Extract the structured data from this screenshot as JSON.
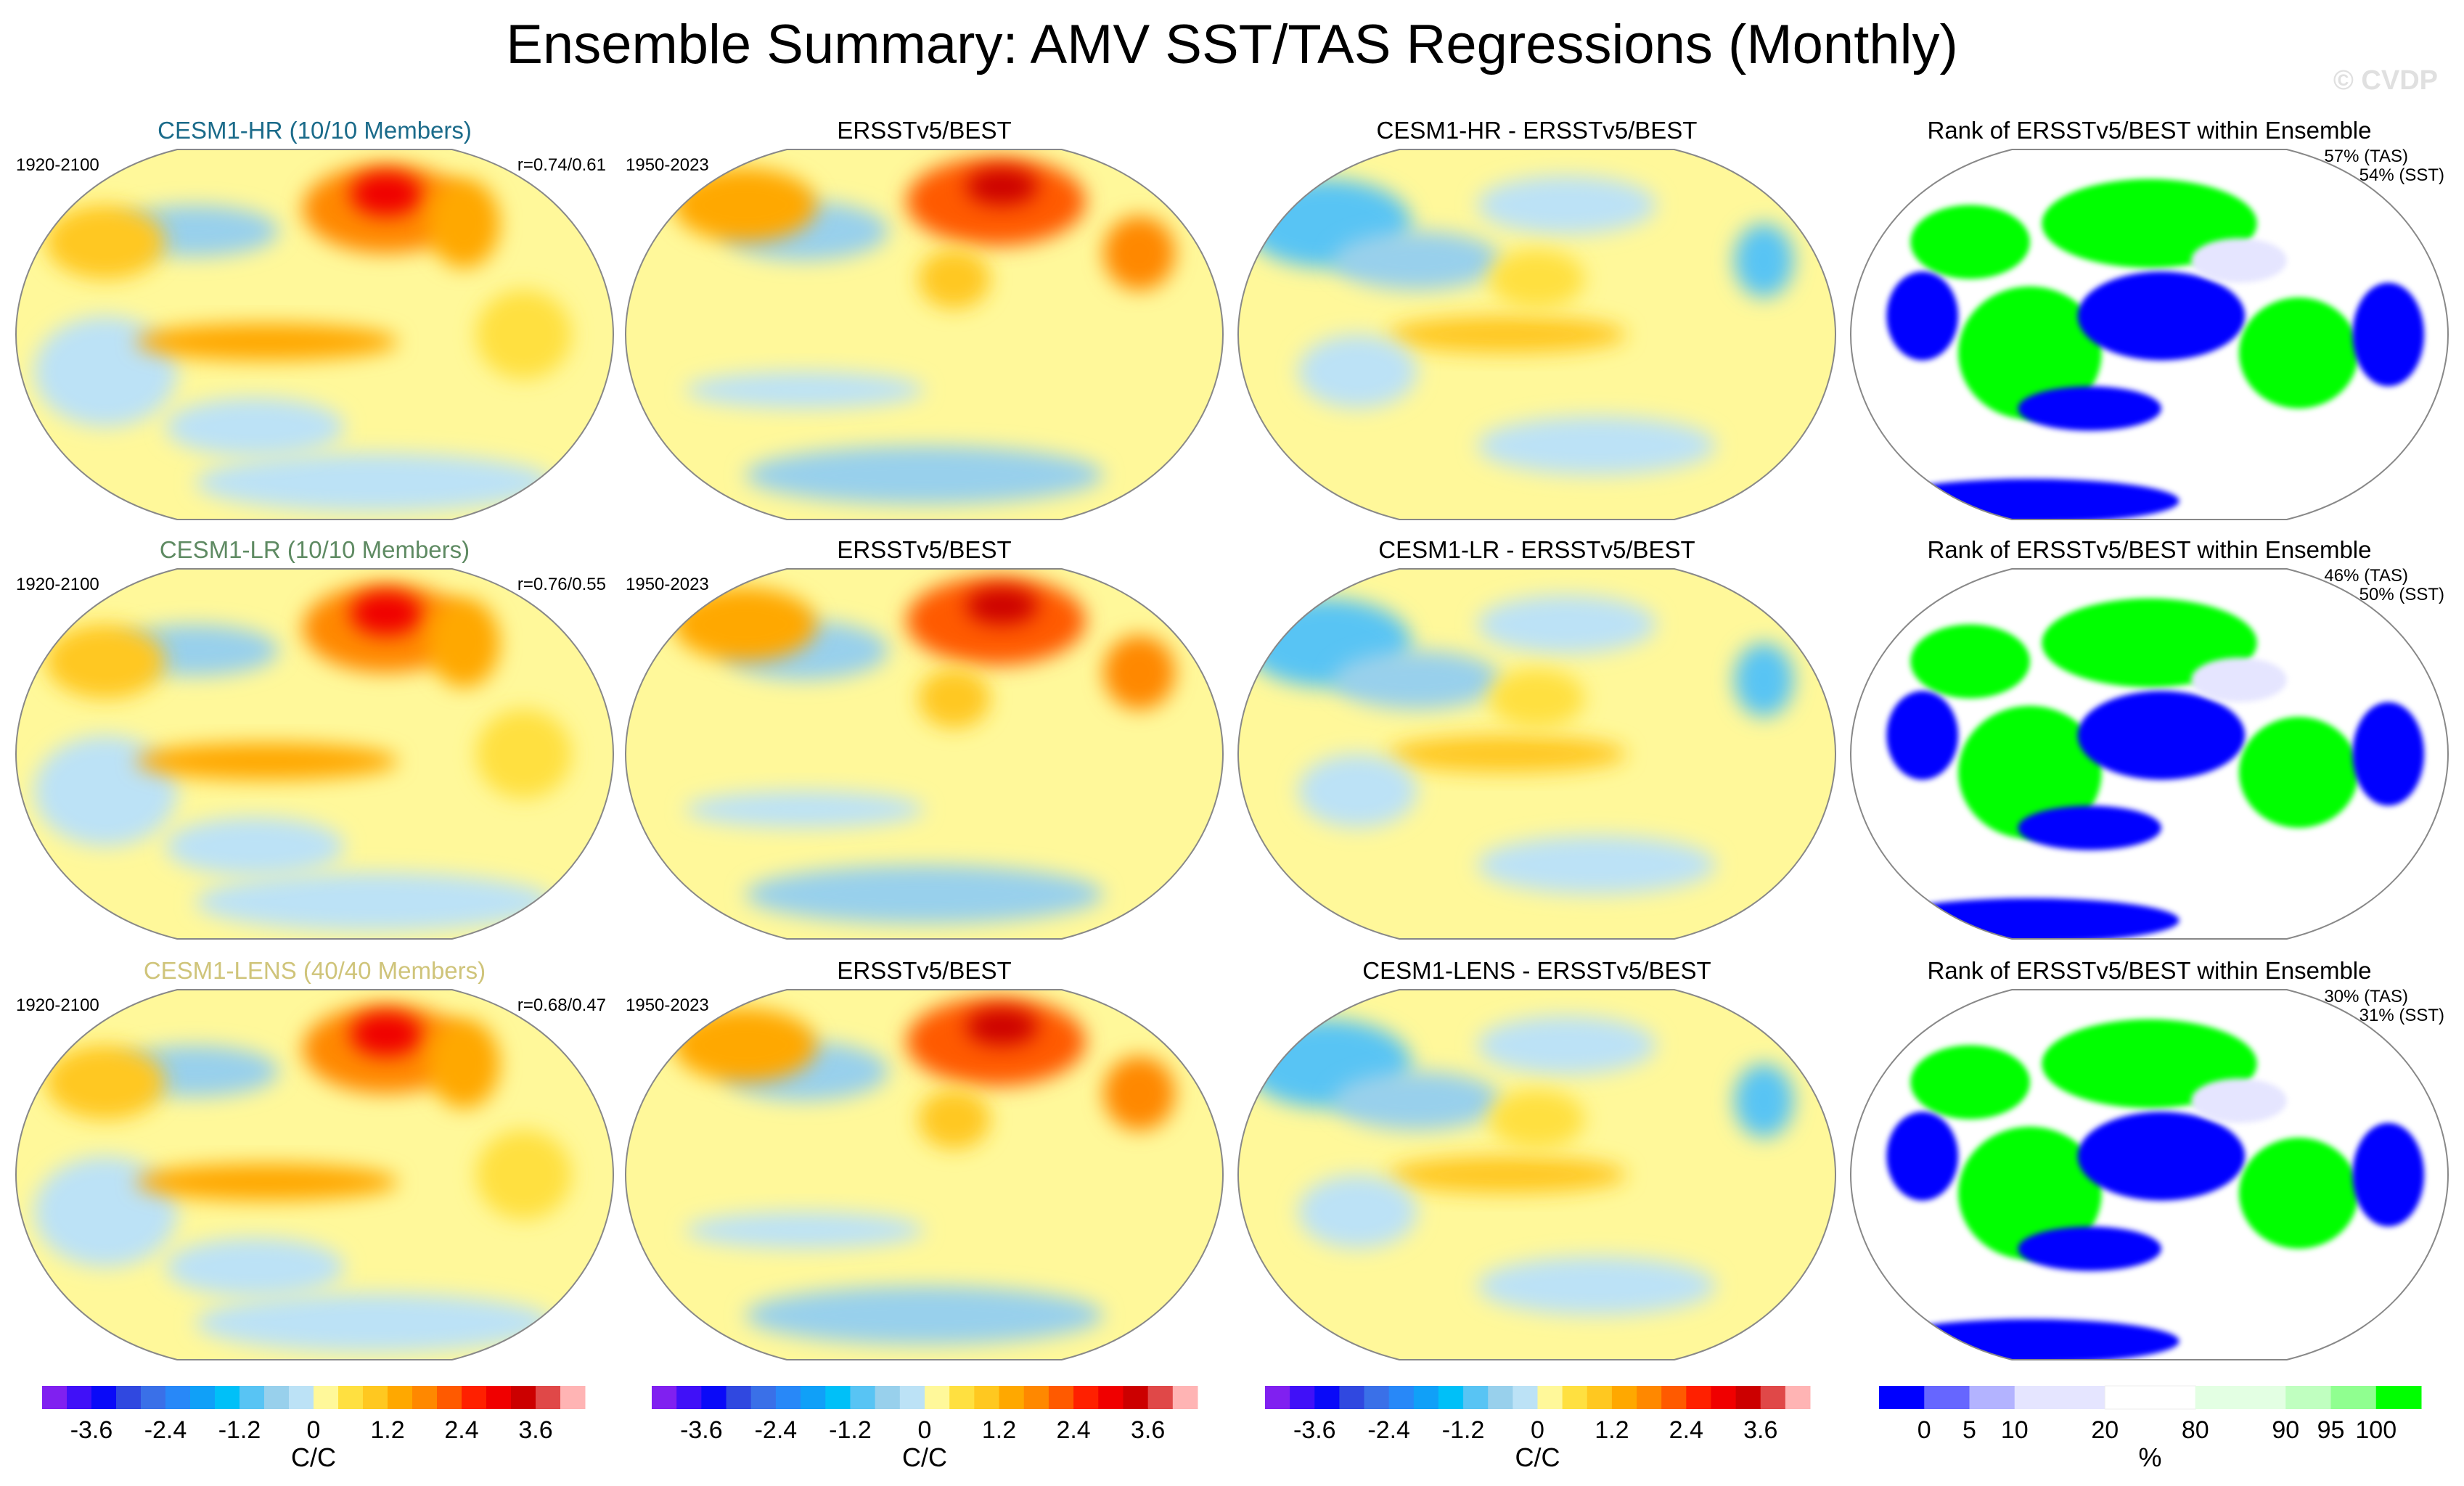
{
  "title": "Ensemble Summary: AMV SST/TAS Regressions (Monthly)",
  "watermark": "© CVDP",
  "rows": [
    {
      "panels": [
        {
          "title": "CESM1-HR (10/10 Members)",
          "title_color": "#1b6b8a",
          "left_label": "1920-2100",
          "right_label": "r=0.74/0.61",
          "kind": "model"
        },
        {
          "title": "ERSSTv5/BEST",
          "title_color": "#000000",
          "left_label": "1950-2023",
          "kind": "obs"
        },
        {
          "title": "CESM1-HR - ERSSTv5/BEST",
          "title_color": "#000000",
          "kind": "diff"
        },
        {
          "title": "Rank of ERSSTv5/BEST within Ensemble",
          "title_color": "#000000",
          "right_label": "57% (TAS)",
          "right_label2": "54% (SST)",
          "kind": "rank"
        }
      ]
    },
    {
      "panels": [
        {
          "title": "CESM1-LR (10/10 Members)",
          "title_color": "#5e8a62",
          "left_label": "1920-2100",
          "right_label": "r=0.76/0.55",
          "kind": "model"
        },
        {
          "title": "ERSSTv5/BEST",
          "title_color": "#000000",
          "left_label": "1950-2023",
          "kind": "obs"
        },
        {
          "title": "CESM1-LR - ERSSTv5/BEST",
          "title_color": "#000000",
          "kind": "diff"
        },
        {
          "title": "Rank of ERSSTv5/BEST within Ensemble",
          "title_color": "#000000",
          "right_label": "46% (TAS)",
          "right_label2": "50% (SST)",
          "kind": "rank"
        }
      ]
    },
    {
      "panels": [
        {
          "title": "CESM1-LENS (40/40 Members)",
          "title_color": "#cfc47a",
          "left_label": "1920-2100",
          "right_label": "r=0.68/0.47",
          "kind": "model"
        },
        {
          "title": "ERSSTv5/BEST",
          "title_color": "#000000",
          "left_label": "1950-2023",
          "kind": "obs"
        },
        {
          "title": "CESM1-LENS - ERSSTv5/BEST",
          "title_color": "#000000",
          "kind": "diff"
        },
        {
          "title": "Rank of ERSSTv5/BEST within Ensemble",
          "title_color": "#000000",
          "right_label": "30% (TAS)",
          "right_label2": "31% (SST)",
          "kind": "rank"
        }
      ]
    }
  ],
  "colorbars": [
    {
      "unit": "C/C",
      "ticks": [
        "-3.6",
        "-2.4",
        "-1.2",
        "0",
        "1.2",
        "2.4",
        "3.6"
      ]
    },
    {
      "unit": "C/C",
      "ticks": [
        "-3.6",
        "-2.4",
        "-1.2",
        "0",
        "1.2",
        "2.4",
        "3.6"
      ]
    },
    {
      "unit": "C/C",
      "ticks": [
        "-3.6",
        "-2.4",
        "-1.2",
        "0",
        "1.2",
        "2.4",
        "3.6"
      ]
    },
    {
      "unit": "%",
      "ticks": [
        "0",
        "5",
        "10",
        "20",
        "80",
        "90",
        "95",
        "100"
      ]
    }
  ],
  "regression_levels": [
    -4.0,
    -3.6,
    -3.2,
    -2.8,
    -2.4,
    -2.0,
    -1.6,
    -1.2,
    -0.8,
    -0.4,
    0,
    0.4,
    0.8,
    1.2,
    1.6,
    2.0,
    2.4,
    2.8,
    3.2,
    3.6,
    4.0
  ],
  "regression_colors": [
    "#8020f0",
    "#4010f8",
    "#0a0af8",
    "#3048e0",
    "#3a70e8",
    "#2888f8",
    "#10a0f8",
    "#00c0f8",
    "#58c4f4",
    "#98d0ec",
    "#bce2f6",
    "#fff89a",
    "#ffe040",
    "#ffc820",
    "#ffa800",
    "#ff8800",
    "#ff5a00",
    "#ff2000",
    "#f00000",
    "#cc0000",
    "#e04848",
    "#ffb4b4"
  ],
  "rank_levels": [
    0,
    5,
    10,
    20,
    80,
    90,
    95,
    100
  ],
  "rank_colors": [
    "#0000ff",
    "#6666ff",
    "#b3b3ff",
    "#e5e5ff",
    "#ffffff",
    "#e3ffe3",
    "#c0ffc0",
    "#90ff90",
    "#00ff00"
  ]
}
